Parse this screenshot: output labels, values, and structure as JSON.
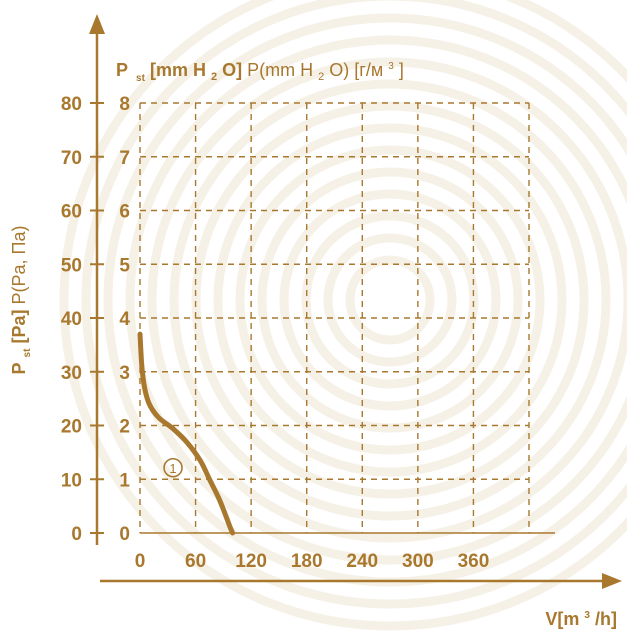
{
  "colors": {
    "accent": "#a8782e",
    "watermark": "#f6f1e7"
  },
  "chart_data": {
    "type": "line",
    "ylabel_left": {
      "bold": "P",
      "sub": "st",
      "bold2": " [Pa]",
      "normal": " P(Pa, Па)"
    },
    "ylabel_top": {
      "bold_p": "P",
      "bold_sub": "st",
      "bold_unit_a": " [mm H",
      "bold_unit_sub": "2",
      "bold_unit_b": "O]",
      "normal_a": " P(mm H",
      "normal_sub": "2",
      "normal_b": "O) [г/м",
      "normal_sup": "3",
      "normal_c": "]"
    },
    "xlabel": {
      "a": "V[m",
      "sup": "3",
      "b": "/h]"
    },
    "x_ticks": [
      "0",
      "60",
      "120",
      "180",
      "240",
      "300",
      "360"
    ],
    "x_tick_values": [
      0,
      60,
      120,
      180,
      240,
      300,
      360
    ],
    "y_ticks_pa": [
      "0",
      "10",
      "20",
      "30",
      "40",
      "50",
      "60",
      "70",
      "80"
    ],
    "y_ticks_mm": [
      "0",
      "1",
      "2",
      "3",
      "4",
      "5",
      "6",
      "7",
      "8"
    ],
    "xlim": [
      0,
      420
    ],
    "ylim": [
      0,
      80
    ],
    "grid": true,
    "series": [
      {
        "label": "1",
        "x": [
          0,
          2,
          5,
          10,
          20,
          35,
          50,
          65,
          75,
          85,
          92,
          97,
          100
        ],
        "y": [
          37,
          31,
          27,
          24,
          21.5,
          19.5,
          17,
          13.5,
          10,
          6.5,
          3.5,
          1.2,
          0
        ]
      }
    ],
    "series_label_point": {
      "x": 40,
      "y": 14
    }
  }
}
